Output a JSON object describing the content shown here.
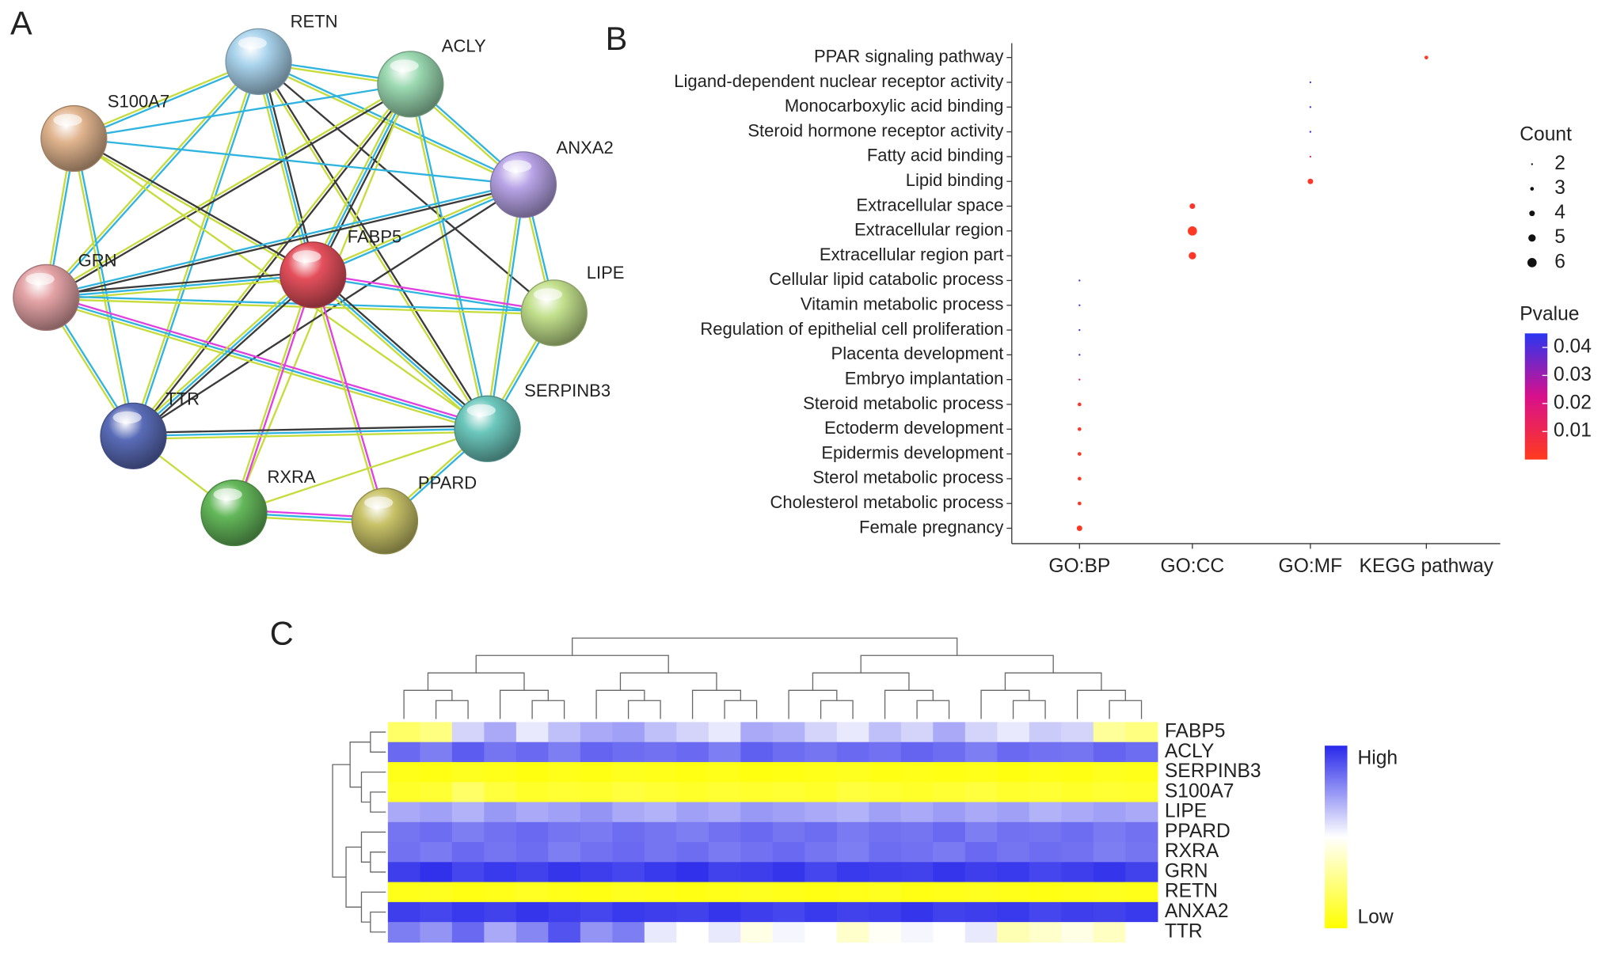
{
  "panels": {
    "a": "A",
    "b": "B",
    "c": "C"
  },
  "network": {
    "nodes": [
      {
        "label": "RETN",
        "color": "#a9d3ec"
      },
      {
        "label": "ACLY",
        "color": "#9ad8b0"
      },
      {
        "label": "S100A7",
        "color": "#e0b48e"
      },
      {
        "label": "ANXA2",
        "color": "#b7a3e6"
      },
      {
        "label": "GRN",
        "color": "#e4a3a6"
      },
      {
        "label": "FABP5",
        "color": "#e4505c"
      },
      {
        "label": "LIPE",
        "color": "#c2e08c"
      },
      {
        "label": "TTR",
        "color": "#5a6cb8"
      },
      {
        "label": "SERPINB3",
        "color": "#6cc7bc"
      },
      {
        "label": "RXRA",
        "color": "#64b85a"
      },
      {
        "label": "PPARD",
        "color": "#c8c268"
      }
    ]
  },
  "chart_data": [
    {
      "type": "dot",
      "categories": [
        "PPAR signaling pathway",
        "Ligand-dependent nuclear receptor activity",
        "Monocarboxylic acid binding",
        "Steroid hormone receptor activity",
        "Fatty acid binding",
        "Lipid binding",
        "Extracellular space",
        "Extracellular region",
        "Extracellular region part",
        "Cellular lipid catabolic process",
        "Vitamin metabolic process",
        "Regulation of epithelial cell proliferation",
        "Placenta development",
        "Embryo implantation",
        "Steroid metabolic process",
        "Ectoderm development",
        "Epidermis development",
        "Sterol metabolic process",
        "Cholesterol metabolic process",
        "Female pregnancy"
      ],
      "x_categories": [
        "GO:BP",
        "GO:CC",
        "GO:MF",
        "KEGG pathway"
      ],
      "group": [
        "KEGG pathway",
        "GO:MF",
        "GO:MF",
        "GO:MF",
        "GO:MF",
        "GO:MF",
        "GO:CC",
        "GO:CC",
        "GO:CC",
        "GO:BP",
        "GO:BP",
        "GO:BP",
        "GO:BP",
        "GO:BP",
        "GO:BP",
        "GO:BP",
        "GO:BP",
        "GO:BP",
        "GO:BP",
        "GO:BP"
      ],
      "count": [
        3,
        2,
        2,
        2,
        2,
        4,
        4,
        6,
        5,
        2,
        2,
        2,
        2,
        2,
        3,
        3,
        3,
        3,
        3,
        4
      ],
      "pvalue": [
        0.001,
        0.04,
        0.04,
        0.04,
        0.01,
        0.002,
        0.003,
        0.001,
        0.002,
        0.04,
        0.042,
        0.04,
        0.038,
        0.012,
        0.002,
        0.002,
        0.002,
        0.002,
        0.002,
        0.001
      ],
      "size_legend_title": "Count",
      "size_legend": [
        2,
        3,
        4,
        5,
        6
      ],
      "color_legend_title": "Pvalue",
      "clim": [
        0,
        0.045
      ],
      "cticks": [
        0.04,
        0.03,
        0.02,
        0.01
      ],
      "colors": [
        "#ff3b1e",
        "#d8108c",
        "#2a36f0"
      ]
    },
    {
      "type": "heatmap",
      "rows": [
        "FABP5",
        "ACLY",
        "SERPINB3",
        "S100A7",
        "LIPE",
        "PPARD",
        "RXRA",
        "GRN",
        "RETN",
        "ANXA2",
        "TTR"
      ],
      "vlim": [
        0,
        1
      ],
      "colors": [
        "#ffff00",
        "#ffffff",
        "#2828eb"
      ],
      "legend_high": "High",
      "legend_low": "Low",
      "values": [
        [
          0.2,
          0.25,
          0.6,
          0.7,
          0.55,
          0.65,
          0.7,
          0.72,
          0.65,
          0.6,
          0.55,
          0.7,
          0.68,
          0.6,
          0.55,
          0.65,
          0.6,
          0.7,
          0.6,
          0.55,
          0.62,
          0.6,
          0.3,
          0.25
        ],
        [
          0.85,
          0.8,
          0.88,
          0.82,
          0.85,
          0.8,
          0.86,
          0.84,
          0.83,
          0.85,
          0.8,
          0.87,
          0.84,
          0.82,
          0.85,
          0.83,
          0.86,
          0.84,
          0.8,
          0.85,
          0.83,
          0.82,
          0.86,
          0.84
        ],
        [
          0.05,
          0.04,
          0.06,
          0.05,
          0.03,
          0.05,
          0.04,
          0.06,
          0.05,
          0.04,
          0.05,
          0.03,
          0.04,
          0.05,
          0.06,
          0.04,
          0.05,
          0.04,
          0.05,
          0.03,
          0.05,
          0.04,
          0.06,
          0.05
        ],
        [
          0.08,
          0.1,
          0.2,
          0.12,
          0.08,
          0.1,
          0.09,
          0.12,
          0.1,
          0.08,
          0.1,
          0.09,
          0.1,
          0.08,
          0.12,
          0.1,
          0.08,
          0.1,
          0.12,
          0.09,
          0.1,
          0.08,
          0.1,
          0.09
        ],
        [
          0.7,
          0.72,
          0.68,
          0.74,
          0.7,
          0.72,
          0.75,
          0.7,
          0.68,
          0.72,
          0.7,
          0.74,
          0.72,
          0.7,
          0.68,
          0.72,
          0.7,
          0.73,
          0.7,
          0.72,
          0.68,
          0.7,
          0.72,
          0.7
        ],
        [
          0.82,
          0.84,
          0.8,
          0.83,
          0.85,
          0.82,
          0.81,
          0.84,
          0.82,
          0.8,
          0.83,
          0.85,
          0.82,
          0.84,
          0.81,
          0.83,
          0.82,
          0.85,
          0.8,
          0.83,
          0.82,
          0.84,
          0.81,
          0.83
        ],
        [
          0.83,
          0.81,
          0.85,
          0.82,
          0.84,
          0.8,
          0.83,
          0.85,
          0.82,
          0.84,
          0.81,
          0.83,
          0.85,
          0.82,
          0.8,
          0.84,
          0.83,
          0.81,
          0.85,
          0.82,
          0.84,
          0.83,
          0.8,
          0.82
        ],
        [
          0.95,
          0.98,
          0.93,
          0.96,
          0.94,
          0.97,
          0.95,
          0.93,
          0.96,
          0.98,
          0.94,
          0.95,
          0.97,
          0.93,
          0.96,
          0.95,
          0.94,
          0.97,
          0.95,
          0.96,
          0.93,
          0.95,
          0.97,
          0.94
        ],
        [
          0.05,
          0.06,
          0.04,
          0.05,
          0.07,
          0.05,
          0.04,
          0.06,
          0.05,
          0.04,
          0.05,
          0.06,
          0.05,
          0.04,
          0.05,
          0.06,
          0.04,
          0.05,
          0.06,
          0.05,
          0.04,
          0.05,
          0.06,
          0.05
        ],
        [
          0.95,
          0.93,
          0.96,
          0.94,
          0.97,
          0.95,
          0.93,
          0.96,
          0.95,
          0.94,
          0.97,
          0.95,
          0.93,
          0.96,
          0.94,
          0.95,
          0.97,
          0.94,
          0.95,
          0.96,
          0.93,
          0.95,
          0.94,
          0.96
        ],
        [
          0.8,
          0.75,
          0.85,
          0.7,
          0.78,
          0.9,
          0.75,
          0.8,
          0.55,
          0.5,
          0.55,
          0.45,
          0.52,
          0.5,
          0.4,
          0.48,
          0.52,
          0.5,
          0.55,
          0.35,
          0.4,
          0.45,
          0.38,
          0.5
        ]
      ]
    }
  ]
}
